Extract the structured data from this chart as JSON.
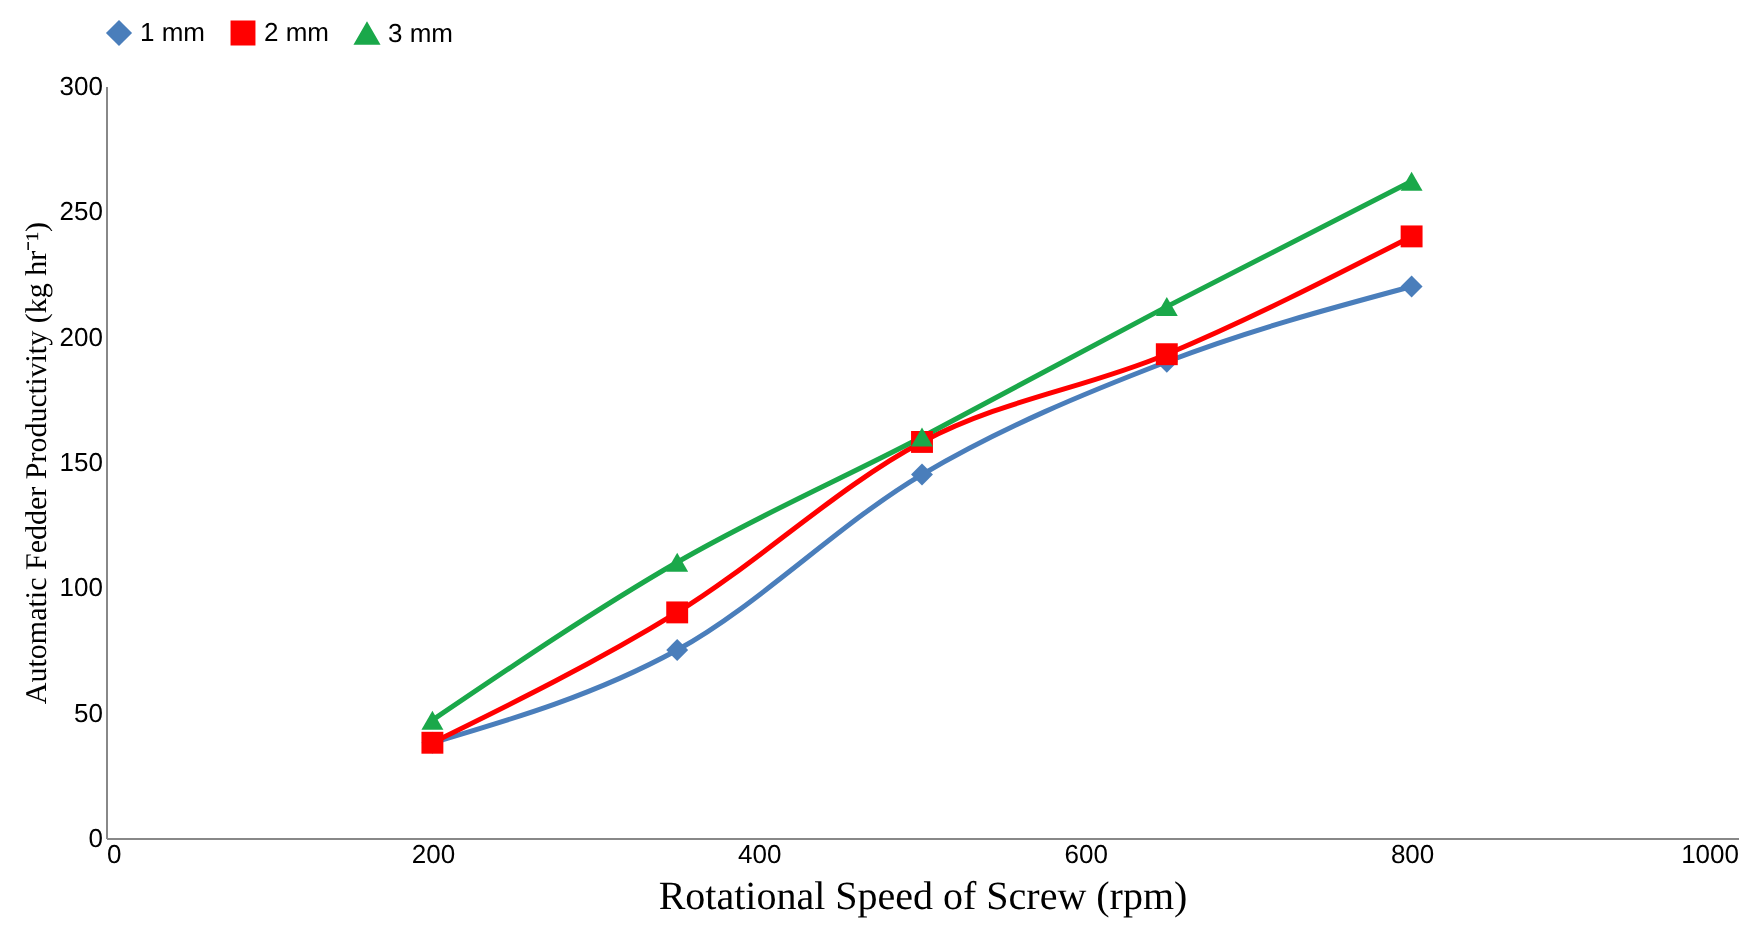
{
  "chart_data": {
    "type": "line",
    "x": [
      200,
      350,
      500,
      650,
      800
    ],
    "series": [
      {
        "name": "1 mm",
        "color": "#4a7ebb",
        "marker": "diamond",
        "values": [
          38,
          75,
          145,
          190,
          220
        ]
      },
      {
        "name": "2 mm",
        "color": "#ff0000",
        "marker": "square",
        "values": [
          38,
          90,
          158,
          193,
          240
        ]
      },
      {
        "name": "3 mm",
        "color": "#1aa84a",
        "marker": "triangle",
        "values": [
          47,
          110,
          160,
          212,
          262
        ]
      }
    ],
    "xlabel": "Rotational Speed of Screw (rpm)",
    "ylabel": "Automatic Fedder Productivity (kg hr⁻¹)",
    "xlim": [
      0,
      1000
    ],
    "xticks": [
      0,
      200,
      400,
      600,
      800,
      1000
    ],
    "ylim": [
      0,
      300
    ],
    "yticks": [
      0,
      50,
      100,
      150,
      200,
      250,
      300
    ],
    "grid": false,
    "legend": "top",
    "line_style": "solid"
  }
}
